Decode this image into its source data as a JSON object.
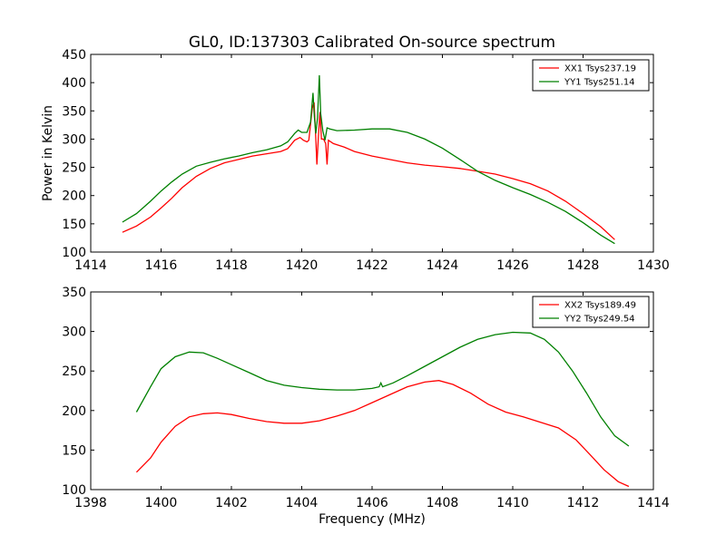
{
  "title": "GL0, ID:137303 Calibrated On-source spectrum",
  "chart_data": [
    {
      "type": "line",
      "xlim": [
        1414,
        1430
      ],
      "ylim": [
        100,
        450
      ],
      "xticks": [
        1414,
        1416,
        1418,
        1420,
        1422,
        1424,
        1426,
        1428,
        1430
      ],
      "yticks": [
        100,
        150,
        200,
        250,
        300,
        350,
        400,
        450
      ],
      "xlabel": "",
      "ylabel": "Power in Kelvin",
      "grid": false,
      "legend_position": "top-right",
      "series": [
        {
          "name": "XX1 Tsys237.19",
          "color": "#ff0000",
          "points": [
            [
              1414.9,
              135
            ],
            [
              1415.3,
              146
            ],
            [
              1415.7,
              162
            ],
            [
              1416.0,
              178
            ],
            [
              1416.3,
              195
            ],
            [
              1416.6,
              214
            ],
            [
              1417.0,
              234
            ],
            [
              1417.4,
              248
            ],
            [
              1417.8,
              258
            ],
            [
              1418.2,
              264
            ],
            [
              1418.6,
              270
            ],
            [
              1419.0,
              274
            ],
            [
              1419.4,
              278
            ],
            [
              1419.6,
              283
            ],
            [
              1419.8,
              298
            ],
            [
              1419.95,
              303
            ],
            [
              1420.05,
              298
            ],
            [
              1420.15,
              295
            ],
            [
              1420.2,
              298
            ],
            [
              1420.3,
              355
            ],
            [
              1420.35,
              365
            ],
            [
              1420.4,
              300
            ],
            [
              1420.43,
              255
            ],
            [
              1420.47,
              300
            ],
            [
              1420.52,
              348
            ],
            [
              1420.56,
              300
            ],
            [
              1420.62,
              300
            ],
            [
              1420.68,
              292
            ],
            [
              1420.72,
              255
            ],
            [
              1420.76,
              298
            ],
            [
              1420.9,
              292
            ],
            [
              1421.2,
              286
            ],
            [
              1421.5,
              278
            ],
            [
              1422.0,
              270
            ],
            [
              1422.5,
              264
            ],
            [
              1423.0,
              258
            ],
            [
              1423.5,
              254
            ],
            [
              1424.0,
              251
            ],
            [
              1424.5,
              248
            ],
            [
              1425.0,
              243
            ],
            [
              1425.5,
              238
            ],
            [
              1426.0,
              230
            ],
            [
              1426.5,
              221
            ],
            [
              1427.0,
              208
            ],
            [
              1427.5,
              190
            ],
            [
              1428.0,
              168
            ],
            [
              1428.5,
              145
            ],
            [
              1428.9,
              122
            ]
          ]
        },
        {
          "name": "YY1 Tsys251.14",
          "color": "#008000",
          "points": [
            [
              1414.9,
              153
            ],
            [
              1415.3,
              168
            ],
            [
              1415.7,
              190
            ],
            [
              1416.0,
              208
            ],
            [
              1416.3,
              224
            ],
            [
              1416.6,
              238
            ],
            [
              1417.0,
              252
            ],
            [
              1417.4,
              259
            ],
            [
              1417.8,
              265
            ],
            [
              1418.2,
              270
            ],
            [
              1418.6,
              276
            ],
            [
              1419.0,
              281
            ],
            [
              1419.4,
              288
            ],
            [
              1419.6,
              295
            ],
            [
              1419.8,
              310
            ],
            [
              1419.9,
              316
            ],
            [
              1420.0,
              312
            ],
            [
              1420.15,
              312
            ],
            [
              1420.25,
              330
            ],
            [
              1420.32,
              382
            ],
            [
              1420.36,
              340
            ],
            [
              1420.4,
              310
            ],
            [
              1420.45,
              338
            ],
            [
              1420.5,
              413
            ],
            [
              1420.54,
              345
            ],
            [
              1420.6,
              315
            ],
            [
              1420.66,
              298
            ],
            [
              1420.72,
              320
            ],
            [
              1420.8,
              318
            ],
            [
              1421.0,
              315
            ],
            [
              1421.5,
              316
            ],
            [
              1422.0,
              318
            ],
            [
              1422.5,
              318
            ],
            [
              1423.0,
              312
            ],
            [
              1423.5,
              300
            ],
            [
              1424.0,
              284
            ],
            [
              1424.5,
              264
            ],
            [
              1425.0,
              243
            ],
            [
              1425.5,
              227
            ],
            [
              1426.0,
              214
            ],
            [
              1426.5,
              202
            ],
            [
              1427.0,
              188
            ],
            [
              1427.5,
              172
            ],
            [
              1428.0,
              152
            ],
            [
              1428.5,
              130
            ],
            [
              1428.9,
              115
            ]
          ]
        }
      ]
    },
    {
      "type": "line",
      "xlim": [
        1398,
        1414
      ],
      "ylim": [
        100,
        350
      ],
      "xticks": [
        1398,
        1400,
        1402,
        1404,
        1406,
        1408,
        1410,
        1412,
        1414
      ],
      "yticks": [
        100,
        150,
        200,
        250,
        300,
        350
      ],
      "xlabel": "Frequency (MHz)",
      "ylabel": "",
      "grid": false,
      "legend_position": "top-right",
      "series": [
        {
          "name": "XX2 Tsys189.49",
          "color": "#ff0000",
          "points": [
            [
              1399.3,
              122
            ],
            [
              1399.7,
              140
            ],
            [
              1400.0,
              160
            ],
            [
              1400.4,
              180
            ],
            [
              1400.8,
              192
            ],
            [
              1401.2,
              196
            ],
            [
              1401.6,
              197
            ],
            [
              1402.0,
              195
            ],
            [
              1402.5,
              190
            ],
            [
              1403.0,
              186
            ],
            [
              1403.5,
              184
            ],
            [
              1404.0,
              184
            ],
            [
              1404.5,
              187
            ],
            [
              1405.0,
              193
            ],
            [
              1405.5,
              200
            ],
            [
              1406.0,
              210
            ],
            [
              1406.5,
              220
            ],
            [
              1407.0,
              230
            ],
            [
              1407.5,
              236
            ],
            [
              1407.9,
              238
            ],
            [
              1408.3,
              233
            ],
            [
              1408.8,
              222
            ],
            [
              1409.3,
              208
            ],
            [
              1409.8,
              198
            ],
            [
              1410.3,
              192
            ],
            [
              1410.8,
              185
            ],
            [
              1411.3,
              178
            ],
            [
              1411.8,
              163
            ],
            [
              1412.2,
              144
            ],
            [
              1412.6,
              125
            ],
            [
              1413.0,
              110
            ],
            [
              1413.3,
              104
            ]
          ]
        },
        {
          "name": "YY2 Tsys249.54",
          "color": "#008000",
          "points": [
            [
              1399.3,
              198
            ],
            [
              1399.7,
              230
            ],
            [
              1400.0,
              253
            ],
            [
              1400.4,
              268
            ],
            [
              1400.8,
              274
            ],
            [
              1401.2,
              273
            ],
            [
              1401.6,
              266
            ],
            [
              1402.0,
              258
            ],
            [
              1402.5,
              248
            ],
            [
              1403.0,
              238
            ],
            [
              1403.5,
              232
            ],
            [
              1404.0,
              229
            ],
            [
              1404.5,
              227
            ],
            [
              1405.0,
              226
            ],
            [
              1405.5,
              226
            ],
            [
              1406.0,
              228
            ],
            [
              1406.2,
              230
            ],
            [
              1406.25,
              235
            ],
            [
              1406.3,
              230
            ],
            [
              1406.6,
              235
            ],
            [
              1407.0,
              244
            ],
            [
              1407.5,
              256
            ],
            [
              1408.0,
              268
            ],
            [
              1408.5,
              280
            ],
            [
              1409.0,
              290
            ],
            [
              1409.5,
              296
            ],
            [
              1410.0,
              299
            ],
            [
              1410.5,
              298
            ],
            [
              1410.9,
              290
            ],
            [
              1411.3,
              274
            ],
            [
              1411.7,
              250
            ],
            [
              1412.1,
              222
            ],
            [
              1412.5,
              192
            ],
            [
              1412.9,
              168
            ],
            [
              1413.3,
              155
            ]
          ]
        }
      ]
    }
  ]
}
